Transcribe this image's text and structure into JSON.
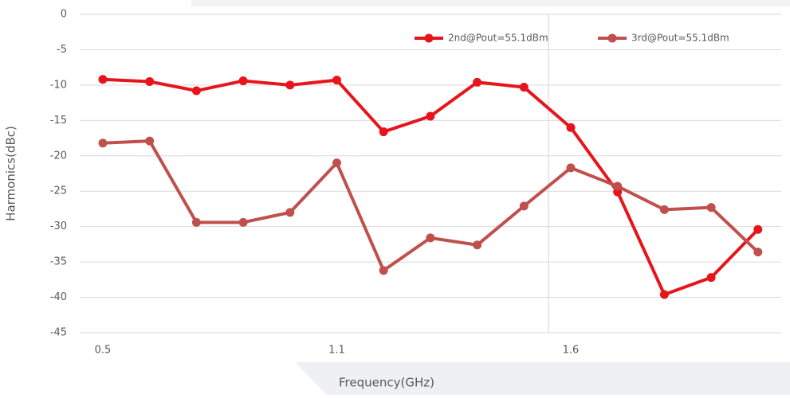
{
  "chart_data": {
    "type": "line",
    "y_label": "Harmonics(dBc)",
    "x_label": "Frequency(GHz)",
    "categories": [
      "0.5",
      null,
      null,
      null,
      null,
      "1.1",
      null,
      null,
      null,
      null,
      "1.6",
      null,
      null,
      null,
      null
    ],
    "series": [
      {
        "name": "2nd@Pout=55.1dBm",
        "color": "#e8141b",
        "values": [
          -9.2,
          -9.5,
          -10.8,
          -9.4,
          -10.0,
          -9.3,
          -16.6,
          -14.4,
          -9.6,
          -10.3,
          -16.0,
          -25.1,
          -39.6,
          -37.2,
          -30.4
        ]
      },
      {
        "name": "3rd@Pout=55.1dBm",
        "color": "#c0504d",
        "values": [
          -18.2,
          -17.9,
          -29.4,
          -29.4,
          -28.0,
          -21.0,
          -36.2,
          -31.6,
          -32.6,
          -27.1,
          -21.7,
          -24.3,
          -27.6,
          -27.3,
          -33.6
        ]
      }
    ],
    "ylim": [
      -45,
      0
    ],
    "yticks": [
      0,
      -5,
      -10,
      -15,
      -20,
      -25,
      -30,
      -35,
      -40,
      -45
    ],
    "grid": true,
    "legend": "top-right"
  }
}
